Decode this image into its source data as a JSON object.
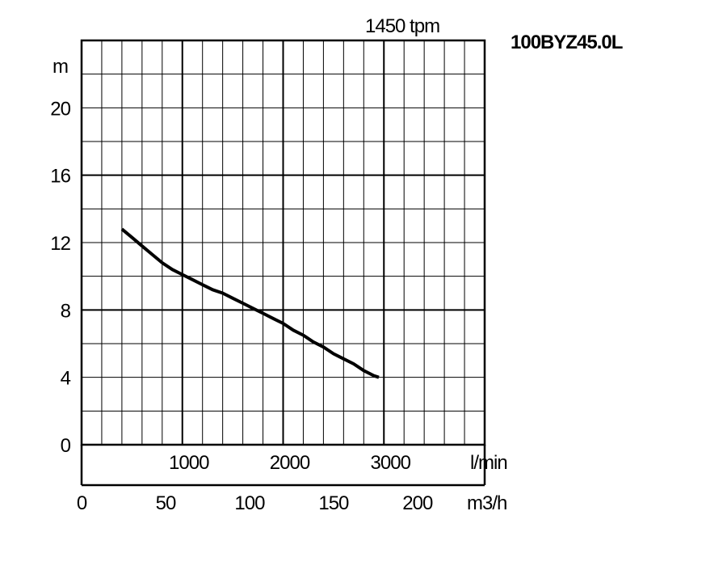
{
  "chart_data": {
    "type": "line",
    "title": "100BYZ45.0L",
    "subtitle": "1450 tpm",
    "ylabel": "m",
    "xlabel_primary": "l/min",
    "xlabel_secondary": "m3/h",
    "ylim": [
      0,
      24
    ],
    "xlim_lmin": [
      0,
      4000
    ],
    "xlim_m3h": [
      0,
      240
    ],
    "y_ticks": [
      "0",
      "4",
      "8",
      "12",
      "16",
      "20"
    ],
    "x_ticks_lmin": [
      "1000",
      "2000",
      "3000"
    ],
    "x_ticks_m3h": [
      "0",
      "50",
      "100",
      "150",
      "200"
    ],
    "grid": true,
    "series": [
      {
        "x_lmin": [
          400,
          500,
          600,
          700,
          800,
          900,
          1000,
          1100,
          1200,
          1300,
          1400,
          1500,
          1600,
          1700,
          1800,
          1900,
          2000,
          2100,
          2200,
          2300,
          2400,
          2500,
          2600,
          2700,
          2800,
          2900,
          2950
        ],
        "y": [
          12.8,
          12.3,
          11.8,
          11.3,
          10.8,
          10.4,
          10.1,
          9.8,
          9.5,
          9.2,
          9.0,
          8.7,
          8.4,
          8.1,
          7.8,
          7.5,
          7.2,
          6.8,
          6.5,
          6.1,
          5.8,
          5.4,
          5.1,
          4.8,
          4.4,
          4.1,
          4.0
        ]
      }
    ]
  }
}
